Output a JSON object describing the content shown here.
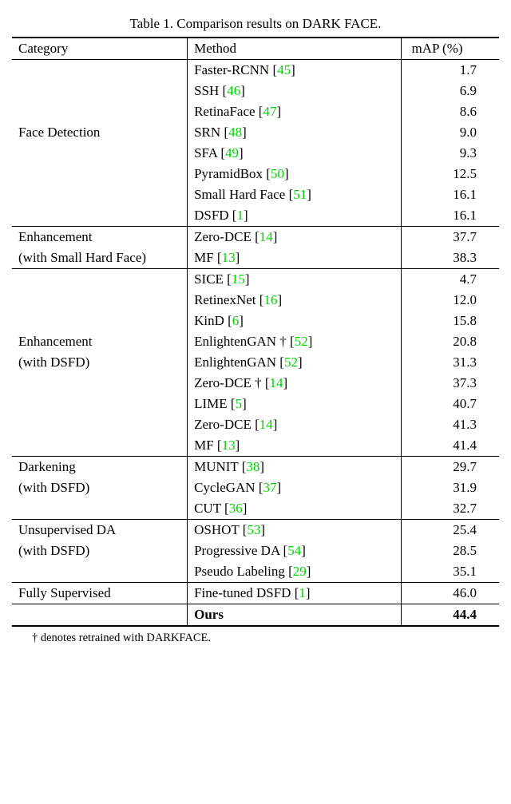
{
  "caption_prefix": "Table 1. Comparison results on ",
  "caption_dataset": "DARK FACE",
  "caption_suffix": ".",
  "headers": {
    "category": "Category",
    "method": "Method",
    "map": "mAP (%)"
  },
  "cite_color": "#00d400",
  "groups": [
    {
      "category_lines": [
        "Face Detection"
      ],
      "rows": [
        {
          "method": "Faster-RCNN",
          "cite": "45",
          "map": "1.7"
        },
        {
          "method": "SSH",
          "cite": "46",
          "map": "6.9"
        },
        {
          "method": "RetinaFace",
          "cite": "47",
          "map": "8.6"
        },
        {
          "method": "SRN",
          "cite": "48",
          "map": "9.0"
        },
        {
          "method": "SFA",
          "cite": "49",
          "map": "9.3"
        },
        {
          "method": "PyramidBox",
          "cite": "50",
          "map": "12.5"
        },
        {
          "method": "Small Hard Face",
          "cite": "51",
          "map": "16.1"
        },
        {
          "method": "DSFD",
          "cite": "1",
          "map": "16.1"
        }
      ]
    },
    {
      "category_lines": [
        "Enhancement",
        "(with Small Hard Face)"
      ],
      "rows": [
        {
          "method": "Zero-DCE",
          "cite": "14",
          "map": "37.7"
        },
        {
          "method": "MF",
          "cite": "13",
          "map": "38.3"
        }
      ]
    },
    {
      "category_lines": [
        "Enhancement",
        "(with DSFD)"
      ],
      "rows": [
        {
          "method": "SICE",
          "cite": "15",
          "map": "4.7"
        },
        {
          "method": "RetinexNet",
          "cite": "16",
          "map": "12.0"
        },
        {
          "method": "KinD",
          "cite": "6",
          "map": "15.8"
        },
        {
          "method": "EnlightenGAN †",
          "cite": "52",
          "map": "20.8"
        },
        {
          "method": "EnlightenGAN",
          "cite": "52",
          "map": "31.3"
        },
        {
          "method": "Zero-DCE †",
          "cite": "14",
          "map": "37.3"
        },
        {
          "method": "LIME",
          "cite": "5",
          "map": "40.7"
        },
        {
          "method": "Zero-DCE",
          "cite": "14",
          "map": "41.3"
        },
        {
          "method": "MF",
          "cite": "13",
          "map": "41.4"
        }
      ]
    },
    {
      "category_lines": [
        "Darkening",
        "(with DSFD)"
      ],
      "rows": [
        {
          "method": "MUNIT",
          "cite": "38",
          "map": "29.7"
        },
        {
          "method": "CycleGAN",
          "cite": "37",
          "map": "31.9"
        },
        {
          "method": "CUT",
          "cite": "36",
          "map": "32.7"
        }
      ]
    },
    {
      "category_lines": [
        "Unsupervised DA",
        "(with DSFD)"
      ],
      "rows": [
        {
          "method": "OSHOT",
          "cite": "53",
          "map": "25.4"
        },
        {
          "method": "Progressive DA",
          "cite": "54",
          "map": "28.5"
        },
        {
          "method": "Pseudo Labeling",
          "cite": "29",
          "map": "35.1"
        }
      ]
    },
    {
      "category_lines": [
        "Fully Supervised"
      ],
      "rows": [
        {
          "method": "Fine-tuned DSFD",
          "cite": "1",
          "map": "46.0"
        }
      ]
    },
    {
      "category_lines": [
        ""
      ],
      "rows": [
        {
          "method": "Ours",
          "map": "44.4",
          "bold": true
        }
      ]
    }
  ],
  "footnote": "† denotes retrained with DARKFACE."
}
